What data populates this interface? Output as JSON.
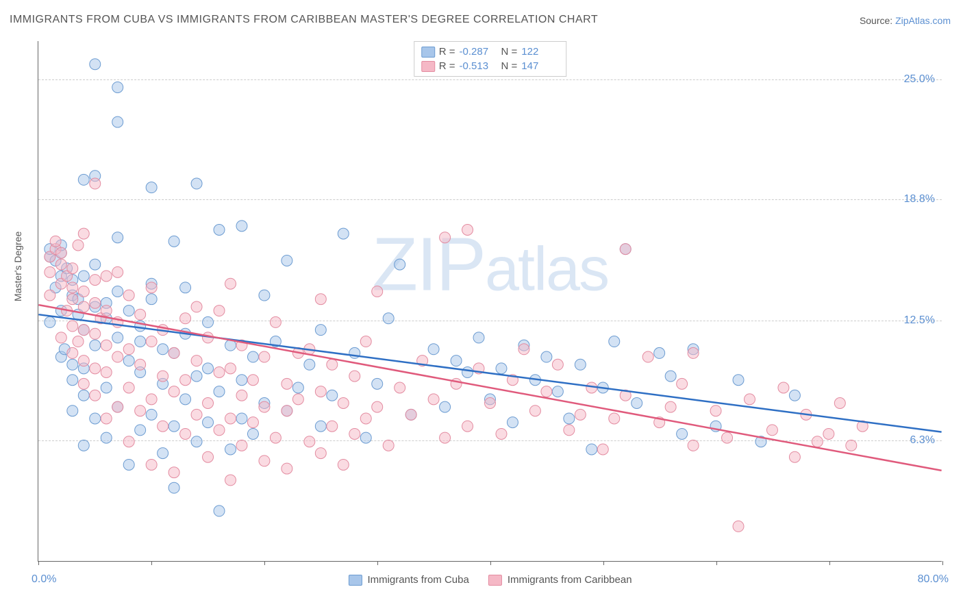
{
  "title": "IMMIGRANTS FROM CUBA VS IMMIGRANTS FROM CARIBBEAN MASTER'S DEGREE CORRELATION CHART",
  "source_prefix": "Source: ",
  "source_link": "ZipAtlas.com",
  "watermark": "ZIPatlas",
  "chart": {
    "type": "scatter",
    "ylabel": "Master's Degree",
    "xlim": [
      0,
      80
    ],
    "ylim": [
      0,
      27
    ],
    "xaxis_min_label": "0.0%",
    "xaxis_max_label": "80.0%",
    "xtick_positions": [
      0,
      10,
      20,
      30,
      40,
      50,
      60,
      70,
      80
    ],
    "ytick_labels": [
      "6.3%",
      "12.5%",
      "18.8%",
      "25.0%"
    ],
    "ytick_values": [
      6.3,
      12.5,
      18.8,
      25.0
    ],
    "grid_color": "#cccccc",
    "axis_color": "#666666",
    "background_color": "#ffffff",
    "label_color": "#5b8fd1",
    "text_color": "#555555",
    "marker_radius": 8,
    "marker_opacity": 0.5,
    "line_width": 2.5,
    "series": [
      {
        "name": "Immigrants from Cuba",
        "fill_color": "#a8c6ea",
        "stroke_color": "#6b9bd1",
        "line_color": "#2e6fc4",
        "R": "-0.287",
        "N": "122",
        "trend": {
          "x1": 0,
          "y1": 12.8,
          "x2": 80,
          "y2": 6.7
        },
        "points": [
          [
            1,
            12.4
          ],
          [
            1,
            15.8
          ],
          [
            1,
            16.2
          ],
          [
            1.5,
            14.2
          ],
          [
            1.5,
            15.6
          ],
          [
            2,
            10.6
          ],
          [
            2,
            13.0
          ],
          [
            2,
            14.8
          ],
          [
            2,
            16.0
          ],
          [
            2,
            16.4
          ],
          [
            2.3,
            11.0
          ],
          [
            2.5,
            15.2
          ],
          [
            3,
            7.8
          ],
          [
            3,
            9.4
          ],
          [
            3,
            10.2
          ],
          [
            3,
            13.8
          ],
          [
            3,
            14.6
          ],
          [
            3.5,
            12.8
          ],
          [
            3.5,
            13.6
          ],
          [
            4,
            6.0
          ],
          [
            4,
            8.6
          ],
          [
            4,
            10.0
          ],
          [
            4,
            12.0
          ],
          [
            4,
            14.8
          ],
          [
            4,
            19.8
          ],
          [
            5,
            7.4
          ],
          [
            5,
            11.2
          ],
          [
            5,
            13.2
          ],
          [
            5,
            15.4
          ],
          [
            5,
            20.0
          ],
          [
            5,
            25.8
          ],
          [
            6,
            6.4
          ],
          [
            6,
            9.0
          ],
          [
            6,
            12.6
          ],
          [
            6,
            13.4
          ],
          [
            7,
            8.0
          ],
          [
            7,
            11.6
          ],
          [
            7,
            14.0
          ],
          [
            7,
            16.8
          ],
          [
            7,
            22.8
          ],
          [
            7,
            24.6
          ],
          [
            8,
            5.0
          ],
          [
            8,
            10.4
          ],
          [
            8,
            13.0
          ],
          [
            9,
            6.8
          ],
          [
            9,
            9.8
          ],
          [
            9,
            11.4
          ],
          [
            9,
            12.2
          ],
          [
            10,
            7.6
          ],
          [
            10,
            13.6
          ],
          [
            10,
            14.4
          ],
          [
            10,
            19.4
          ],
          [
            11,
            5.6
          ],
          [
            11,
            9.2
          ],
          [
            11,
            11.0
          ],
          [
            12,
            3.8
          ],
          [
            12,
            7.0
          ],
          [
            12,
            10.8
          ],
          [
            12,
            16.6
          ],
          [
            13,
            8.4
          ],
          [
            13,
            11.8
          ],
          [
            13,
            14.2
          ],
          [
            14,
            6.2
          ],
          [
            14,
            9.6
          ],
          [
            14,
            19.6
          ],
          [
            15,
            7.2
          ],
          [
            15,
            10.0
          ],
          [
            15,
            12.4
          ],
          [
            16,
            2.6
          ],
          [
            16,
            8.8
          ],
          [
            16,
            17.2
          ],
          [
            17,
            5.8
          ],
          [
            17,
            11.2
          ],
          [
            18,
            7.4
          ],
          [
            18,
            9.4
          ],
          [
            18,
            17.4
          ],
          [
            19,
            6.6
          ],
          [
            19,
            10.6
          ],
          [
            20,
            8.2
          ],
          [
            20,
            13.8
          ],
          [
            21,
            11.4
          ],
          [
            22,
            7.8
          ],
          [
            22,
            15.6
          ],
          [
            23,
            9.0
          ],
          [
            24,
            10.2
          ],
          [
            25,
            7.0
          ],
          [
            25,
            12.0
          ],
          [
            26,
            8.6
          ],
          [
            27,
            17.0
          ],
          [
            28,
            10.8
          ],
          [
            29,
            6.4
          ],
          [
            30,
            9.2
          ],
          [
            31,
            12.6
          ],
          [
            32,
            15.4
          ],
          [
            33,
            7.6
          ],
          [
            35,
            11.0
          ],
          [
            36,
            8.0
          ],
          [
            37,
            10.4
          ],
          [
            38,
            9.8
          ],
          [
            39,
            11.6
          ],
          [
            40,
            8.4
          ],
          [
            41,
            10.0
          ],
          [
            42,
            7.2
          ],
          [
            43,
            11.2
          ],
          [
            44,
            9.4
          ],
          [
            45,
            10.6
          ],
          [
            46,
            8.8
          ],
          [
            47,
            7.4
          ],
          [
            48,
            10.2
          ],
          [
            49,
            5.8
          ],
          [
            50,
            9.0
          ],
          [
            51,
            11.4
          ],
          [
            52,
            16.2
          ],
          [
            53,
            8.2
          ],
          [
            55,
            10.8
          ],
          [
            56,
            9.6
          ],
          [
            57,
            6.6
          ],
          [
            58,
            11.0
          ],
          [
            60,
            7.0
          ],
          [
            62,
            9.4
          ],
          [
            64,
            6.2
          ],
          [
            67,
            8.6
          ]
        ]
      },
      {
        "name": "Immigrants from Caribbean",
        "fill_color": "#f5b8c6",
        "stroke_color": "#e38ba0",
        "line_color": "#e05a7c",
        "R": "-0.513",
        "N": "147",
        "trend": {
          "x1": 0,
          "y1": 13.3,
          "x2": 80,
          "y2": 4.7
        },
        "points": [
          [
            1,
            13.8
          ],
          [
            1,
            15.0
          ],
          [
            1,
            15.8
          ],
          [
            1.5,
            16.2
          ],
          [
            1.5,
            16.6
          ],
          [
            2,
            11.6
          ],
          [
            2,
            14.4
          ],
          [
            2,
            15.4
          ],
          [
            2,
            16.0
          ],
          [
            2.5,
            13.0
          ],
          [
            2.5,
            14.8
          ],
          [
            3,
            10.8
          ],
          [
            3,
            12.2
          ],
          [
            3,
            13.6
          ],
          [
            3,
            14.2
          ],
          [
            3,
            15.2
          ],
          [
            3.5,
            11.4
          ],
          [
            3.5,
            16.4
          ],
          [
            4,
            9.2
          ],
          [
            4,
            10.4
          ],
          [
            4,
            12.0
          ],
          [
            4,
            13.2
          ],
          [
            4,
            14.0
          ],
          [
            4,
            17.0
          ],
          [
            5,
            8.6
          ],
          [
            5,
            10.0
          ],
          [
            5,
            11.8
          ],
          [
            5,
            13.4
          ],
          [
            5,
            14.6
          ],
          [
            5,
            19.6
          ],
          [
            5.5,
            12.6
          ],
          [
            6,
            7.4
          ],
          [
            6,
            9.8
          ],
          [
            6,
            11.2
          ],
          [
            6,
            13.0
          ],
          [
            6,
            14.8
          ],
          [
            7,
            8.0
          ],
          [
            7,
            10.6
          ],
          [
            7,
            12.4
          ],
          [
            7,
            15.0
          ],
          [
            8,
            6.2
          ],
          [
            8,
            9.0
          ],
          [
            8,
            11.0
          ],
          [
            8,
            13.8
          ],
          [
            9,
            7.8
          ],
          [
            9,
            10.2
          ],
          [
            9,
            12.8
          ],
          [
            10,
            5.0
          ],
          [
            10,
            8.4
          ],
          [
            10,
            11.4
          ],
          [
            10,
            14.2
          ],
          [
            11,
            7.0
          ],
          [
            11,
            9.6
          ],
          [
            11,
            12.0
          ],
          [
            12,
            4.6
          ],
          [
            12,
            8.8
          ],
          [
            12,
            10.8
          ],
          [
            13,
            6.6
          ],
          [
            13,
            9.4
          ],
          [
            13,
            12.6
          ],
          [
            14,
            7.6
          ],
          [
            14,
            10.4
          ],
          [
            14,
            13.2
          ],
          [
            15,
            5.4
          ],
          [
            15,
            8.2
          ],
          [
            15,
            11.6
          ],
          [
            16,
            6.8
          ],
          [
            16,
            9.8
          ],
          [
            16,
            13.0
          ],
          [
            17,
            4.2
          ],
          [
            17,
            7.4
          ],
          [
            17,
            10.0
          ],
          [
            17,
            14.4
          ],
          [
            18,
            6.0
          ],
          [
            18,
            8.6
          ],
          [
            18,
            11.2
          ],
          [
            19,
            7.2
          ],
          [
            19,
            9.4
          ],
          [
            20,
            5.2
          ],
          [
            20,
            8.0
          ],
          [
            20,
            10.6
          ],
          [
            21,
            6.4
          ],
          [
            21,
            12.4
          ],
          [
            22,
            4.8
          ],
          [
            22,
            7.8
          ],
          [
            22,
            9.2
          ],
          [
            23,
            8.4
          ],
          [
            23,
            10.8
          ],
          [
            24,
            6.2
          ],
          [
            24,
            11.0
          ],
          [
            25,
            5.6
          ],
          [
            25,
            8.8
          ],
          [
            25,
            13.6
          ],
          [
            26,
            7.0
          ],
          [
            26,
            10.2
          ],
          [
            27,
            5.0
          ],
          [
            27,
            8.2
          ],
          [
            28,
            6.6
          ],
          [
            28,
            9.6
          ],
          [
            29,
            7.4
          ],
          [
            29,
            11.4
          ],
          [
            30,
            8.0
          ],
          [
            30,
            14.0
          ],
          [
            31,
            6.0
          ],
          [
            32,
            9.0
          ],
          [
            33,
            7.6
          ],
          [
            34,
            10.4
          ],
          [
            35,
            8.4
          ],
          [
            36,
            6.4
          ],
          [
            36,
            16.8
          ],
          [
            37,
            9.2
          ],
          [
            38,
            7.0
          ],
          [
            38,
            17.2
          ],
          [
            39,
            10.0
          ],
          [
            40,
            8.2
          ],
          [
            41,
            6.6
          ],
          [
            42,
            9.4
          ],
          [
            43,
            11.0
          ],
          [
            44,
            7.8
          ],
          [
            45,
            8.8
          ],
          [
            46,
            10.2
          ],
          [
            47,
            6.8
          ],
          [
            48,
            7.6
          ],
          [
            49,
            9.0
          ],
          [
            50,
            5.8
          ],
          [
            51,
            7.4
          ],
          [
            52,
            8.6
          ],
          [
            52,
            16.2
          ],
          [
            54,
            10.6
          ],
          [
            55,
            7.2
          ],
          [
            56,
            8.0
          ],
          [
            57,
            9.2
          ],
          [
            58,
            6.0
          ],
          [
            58,
            10.8
          ],
          [
            60,
            7.8
          ],
          [
            61,
            6.4
          ],
          [
            62,
            1.8
          ],
          [
            63,
            8.4
          ],
          [
            65,
            6.8
          ],
          [
            66,
            9.0
          ],
          [
            67,
            5.4
          ],
          [
            68,
            7.6
          ],
          [
            69,
            6.2
          ],
          [
            70,
            6.6
          ],
          [
            71,
            8.2
          ],
          [
            72,
            6.0
          ],
          [
            73,
            7.0
          ]
        ]
      }
    ]
  },
  "legend_bottom": [
    {
      "label": "Immigrants from Cuba"
    },
    {
      "label": "Immigrants from Caribbean"
    }
  ]
}
